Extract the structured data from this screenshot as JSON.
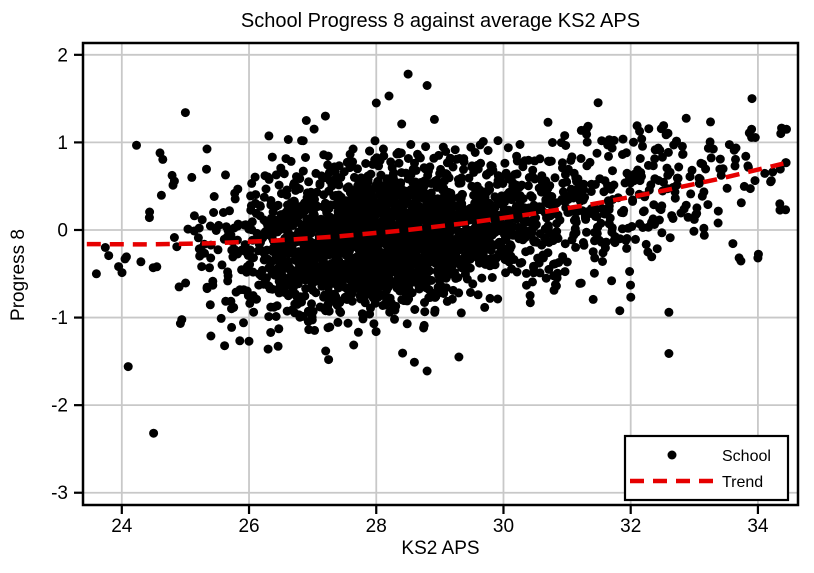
{
  "chart_data": {
    "type": "scatter",
    "title": "School Progress 8 against average KS2 APS",
    "xlabel": "KS2 APS",
    "ylabel": "Progress 8",
    "xlim": [
      23.39,
      34.63
    ],
    "ylim": [
      -3.14,
      2.135
    ],
    "xticks": [
      24,
      26,
      28,
      30,
      32,
      34
    ],
    "yticks": [
      -3,
      -2,
      -1,
      0,
      1,
      2
    ],
    "grid": true,
    "colors": {
      "point": "#000000",
      "trend": "#e60000",
      "grid": "#c8c8c8",
      "axis": "#000000",
      "background": "#ffffff"
    },
    "legend": {
      "position": "bottom-right",
      "entries": [
        {
          "label": "School",
          "type": "point",
          "color": "#000000"
        },
        {
          "label": "Trend",
          "type": "dashed-line",
          "color": "#e60000"
        }
      ]
    },
    "series": [
      {
        "name": "School",
        "type": "scatter",
        "color": "#000000",
        "marker_radius": 4.5,
        "notable_points": [
          [
            25.0,
            1.34
          ],
          [
            28.5,
            1.78
          ],
          [
            28.8,
            1.65
          ],
          [
            28.2,
            1.53
          ],
          [
            28.0,
            1.45
          ],
          [
            28.4,
            1.21
          ],
          [
            30.7,
            1.23
          ],
          [
            32.1,
            1.19
          ],
          [
            26.9,
            1.25
          ],
          [
            27.2,
            1.3
          ],
          [
            24.5,
            -2.32
          ],
          [
            24.1,
            -1.56
          ],
          [
            23.6,
            -0.5
          ],
          [
            25.4,
            -1.21
          ],
          [
            26.0,
            -1.27
          ],
          [
            26.3,
            -1.36
          ],
          [
            28.8,
            -1.61
          ],
          [
            28.6,
            -1.51
          ],
          [
            29.3,
            -1.45
          ],
          [
            32.6,
            -1.41
          ],
          [
            32.6,
            -0.94
          ],
          [
            34.0,
            -0.32
          ],
          [
            31.2,
            -0.61
          ],
          [
            31.7,
            -0.58
          ],
          [
            23.74,
            -0.2
          ],
          [
            24.05,
            -0.33
          ],
          [
            24.55,
            -0.42
          ],
          [
            24.6,
            0.88
          ],
          [
            24.9,
            -0.65
          ],
          [
            25.1,
            0.6
          ],
          [
            34.36,
            1.1
          ],
          [
            34.45,
            1.15
          ],
          [
            33.9,
            1.15
          ],
          [
            34.2,
            0.55
          ]
        ],
        "cloud": {
          "count": 2500,
          "seed": 42,
          "x_mixture": [
            {
              "weight": 0.87,
              "mean": 28.15,
              "sd": 1.35
            },
            {
              "weight": 0.13,
              "mean": 31.9,
              "sd": 1.35
            }
          ],
          "x_clip": [
            23.5,
            34.45
          ],
          "y_center_offset": -0.05,
          "y_noise_sd": 0.42,
          "y_noise_clip": 1.35,
          "y_clip": [
            -1.65,
            1.5
          ]
        }
      },
      {
        "name": "Trend",
        "type": "line",
        "color": "#e60000",
        "dash": [
          14,
          9
        ],
        "width": 4.5,
        "points": [
          [
            23.45,
            -0.161
          ],
          [
            24.4,
            -0.165
          ],
          [
            25.4,
            -0.152
          ],
          [
            26.4,
            -0.121
          ],
          [
            27.4,
            -0.073
          ],
          [
            28.4,
            -0.007
          ],
          [
            29.4,
            0.077
          ],
          [
            30.4,
            0.178
          ],
          [
            31.4,
            0.296
          ],
          [
            32.4,
            0.432
          ],
          [
            33.4,
            0.586
          ],
          [
            34.4,
            0.758
          ]
        ]
      }
    ]
  }
}
